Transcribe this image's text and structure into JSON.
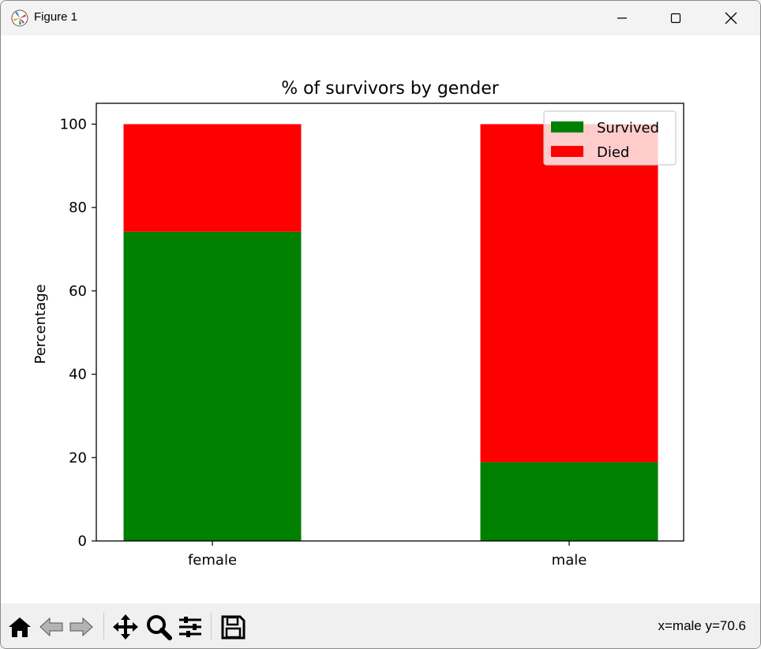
{
  "window": {
    "title": "Figure 1"
  },
  "toolbar": {
    "coords": "x=male y=70.6",
    "buttons": [
      "home-icon",
      "back-arrow-icon",
      "forward-arrow-icon",
      "pan-icon",
      "zoom-icon",
      "configure-subplots-icon",
      "save-icon"
    ]
  },
  "chart_data": {
    "type": "bar",
    "stacked": true,
    "title": "% of survivors by gender",
    "xlabel": "",
    "ylabel": "Percentage",
    "categories": [
      "female",
      "male"
    ],
    "series": [
      {
        "name": "Survived",
        "values": [
          74.2,
          18.9
        ],
        "color": "#008000"
      },
      {
        "name": "Died",
        "values": [
          25.8,
          81.1
        ],
        "color": "#ff0000"
      }
    ],
    "ylim": [
      0,
      105
    ],
    "yticks": [
      "0",
      "20",
      "40",
      "60",
      "80",
      "100"
    ],
    "legend": "top-right",
    "grid": false
  }
}
